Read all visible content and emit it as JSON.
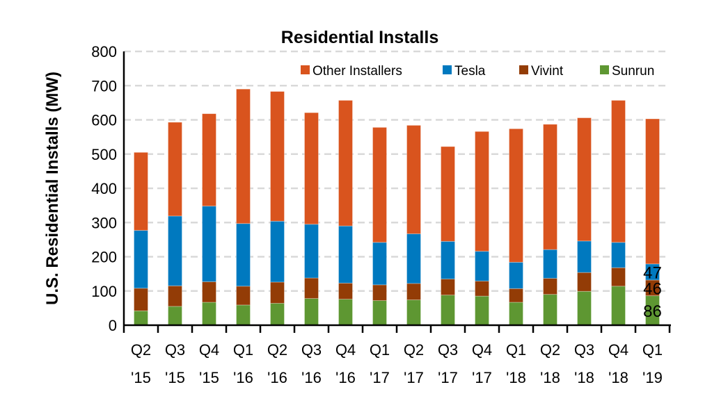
{
  "chart_data": {
    "type": "bar",
    "stacked": true,
    "title": "Residential Installs",
    "xlabel": "",
    "ylabel": "U.S. Residential Installs (MW)",
    "ylim": [
      0,
      800
    ],
    "yticks": [
      0,
      100,
      200,
      300,
      400,
      500,
      600,
      700,
      800
    ],
    "grid": true,
    "legend_position": "top-right",
    "categories": [
      [
        "Q2",
        "'15"
      ],
      [
        "Q3",
        "'15"
      ],
      [
        "Q4",
        "'15"
      ],
      [
        "Q1",
        "'16"
      ],
      [
        "Q2",
        "'16"
      ],
      [
        "Q3",
        "'16"
      ],
      [
        "Q4",
        "'16"
      ],
      [
        "Q1",
        "'17"
      ],
      [
        "Q2",
        "'17"
      ],
      [
        "Q3",
        "'17"
      ],
      [
        "Q4",
        "'17"
      ],
      [
        "Q1",
        "'18"
      ],
      [
        "Q2",
        "'18"
      ],
      [
        "Q3",
        "'18"
      ],
      [
        "Q4",
        "'18"
      ],
      [
        "Q1",
        "'19"
      ]
    ],
    "series": [
      {
        "name": "Sunrun",
        "color": "#5e9732",
        "values": [
          42,
          55,
          67,
          59,
          64,
          78,
          76,
          72,
          74,
          88,
          85,
          67,
          90,
          99,
          114,
          86
        ]
      },
      {
        "name": "Vivint",
        "color": "#933c06",
        "values": [
          66,
          60,
          60,
          55,
          62,
          60,
          47,
          46,
          48,
          47,
          44,
          40,
          47,
          55,
          54,
          46
        ]
      },
      {
        "name": "Tesla",
        "color": "#0079bf",
        "values": [
          169,
          204,
          221,
          183,
          178,
          157,
          167,
          124,
          145,
          110,
          87,
          77,
          84,
          92,
          74,
          47
        ]
      },
      {
        "name": "Other Installers",
        "color": "#d9541e",
        "values": [
          228,
          274,
          270,
          393,
          379,
          326,
          367,
          336,
          317,
          277,
          350,
          390,
          366,
          360,
          415,
          424
        ]
      }
    ],
    "legend_order": [
      "Other Installers",
      "Tesla",
      "Vivint",
      "Sunrun"
    ],
    "data_labels": [
      {
        "category_index": 15,
        "series": "Tesla",
        "text": "47"
      },
      {
        "category_index": 15,
        "series": "Vivint",
        "text": "46"
      },
      {
        "category_index": 15,
        "series": "Sunrun",
        "text": "86"
      }
    ]
  }
}
